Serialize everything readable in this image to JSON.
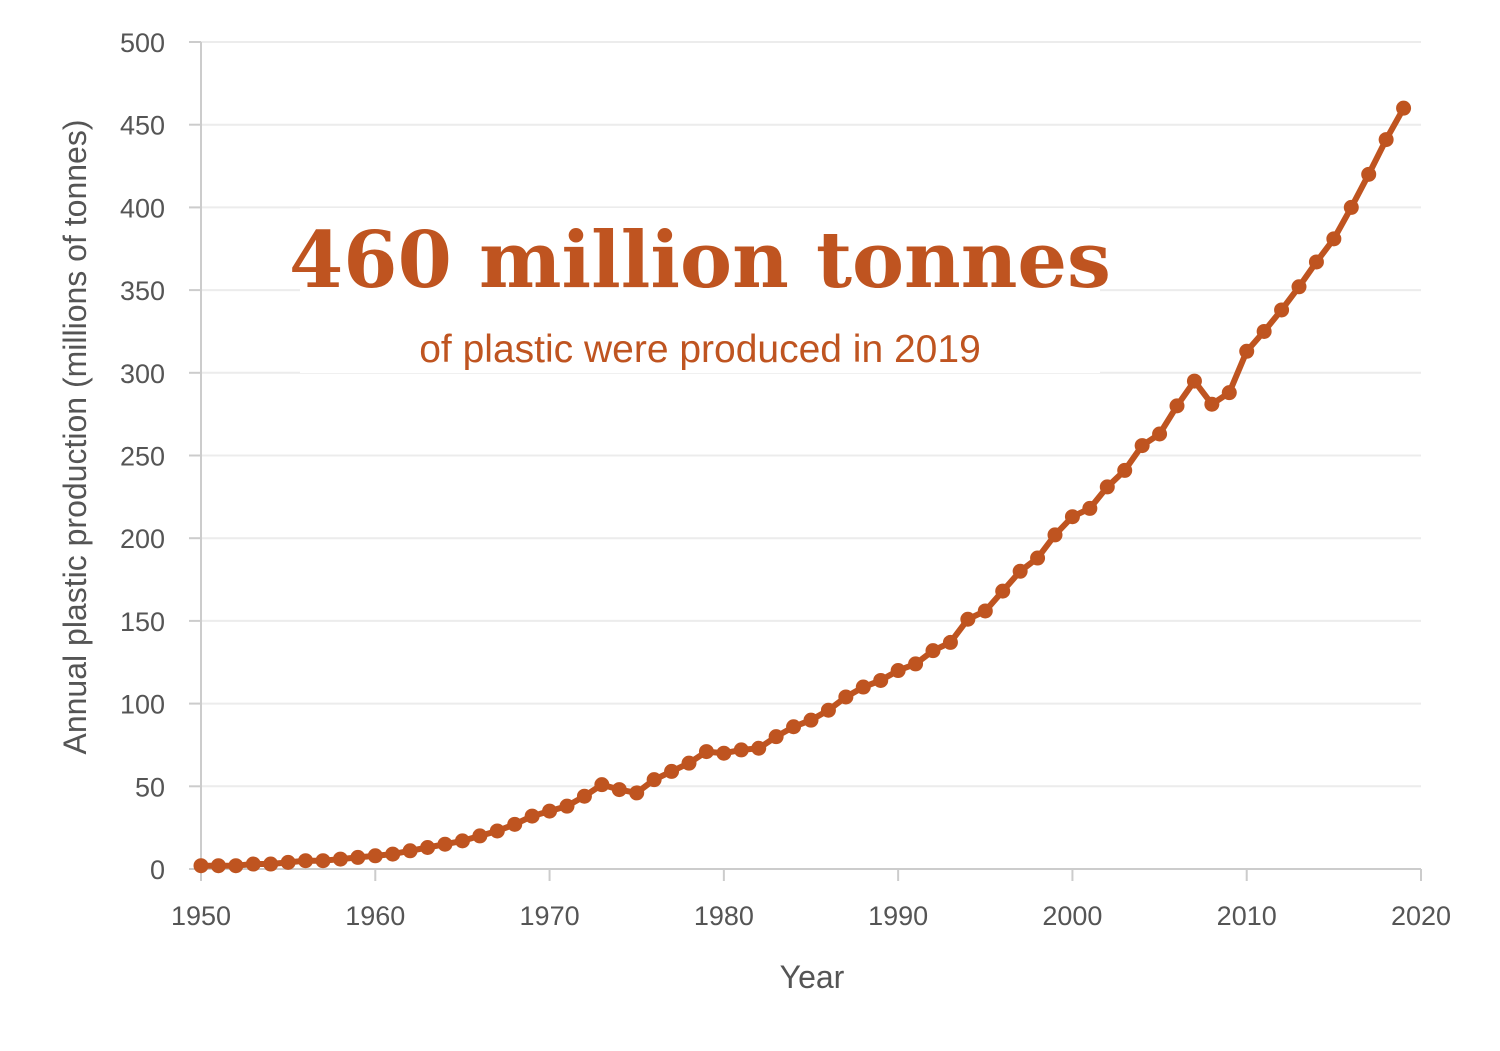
{
  "colors": {
    "accent": "#bf5420",
    "grid": "#ececec",
    "axis": "#cccccc",
    "text": "#555555"
  },
  "annotation": {
    "headline": "460 million tonnes",
    "subhead": "of plastic were produced in 2019"
  },
  "chart_data": {
    "type": "line",
    "xlabel": "Year",
    "ylabel": "Annual plastic production (millions of tonnes)",
    "xlim": [
      1950,
      2020
    ],
    "ylim": [
      0,
      500
    ],
    "x_ticks": [
      1950,
      1960,
      1970,
      1980,
      1990,
      2000,
      2010,
      2020
    ],
    "y_ticks": [
      0,
      50,
      100,
      150,
      200,
      250,
      300,
      350,
      400,
      450,
      500
    ],
    "grid": "horizontal",
    "legend": "none",
    "x": [
      1950,
      1951,
      1952,
      1953,
      1954,
      1955,
      1956,
      1957,
      1958,
      1959,
      1960,
      1961,
      1962,
      1963,
      1964,
      1965,
      1966,
      1967,
      1968,
      1969,
      1970,
      1971,
      1972,
      1973,
      1974,
      1975,
      1976,
      1977,
      1978,
      1979,
      1980,
      1981,
      1982,
      1983,
      1984,
      1985,
      1986,
      1987,
      1988,
      1989,
      1990,
      1991,
      1992,
      1993,
      1994,
      1995,
      1996,
      1997,
      1998,
      1999,
      2000,
      2001,
      2002,
      2003,
      2004,
      2005,
      2006,
      2007,
      2008,
      2009,
      2010,
      2011,
      2012,
      2013,
      2014,
      2015,
      2016,
      2017,
      2018,
      2019
    ],
    "series": [
      {
        "values": [
          2,
          2,
          2,
          3,
          3,
          4,
          5,
          5,
          6,
          7,
          8,
          9,
          11,
          13,
          15,
          17,
          20,
          23,
          27,
          32,
          35,
          38,
          44,
          51,
          48,
          46,
          54,
          59,
          64,
          71,
          70,
          72,
          73,
          80,
          86,
          90,
          96,
          104,
          110,
          114,
          120,
          124,
          132,
          137,
          151,
          156,
          168,
          180,
          188,
          202,
          213,
          218,
          231,
          241,
          256,
          263,
          280,
          295,
          281,
          288,
          313,
          325,
          338,
          352,
          367,
          381,
          400,
          420,
          441,
          460
        ]
      }
    ]
  }
}
